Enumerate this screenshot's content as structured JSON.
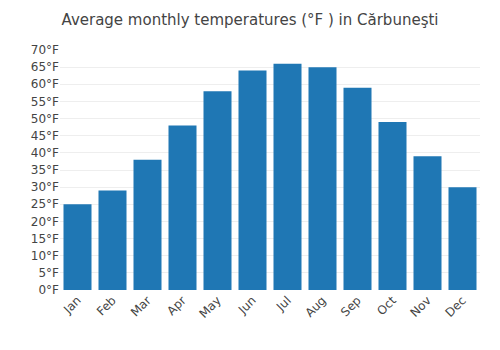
{
  "chart_data": {
    "type": "bar",
    "title": "Average monthly temperatures (°F ) in Cărbuneşti",
    "categories": [
      "Jan",
      "Feb",
      "Mar",
      "Apr",
      "May",
      "Jun",
      "Jul",
      "Aug",
      "Sep",
      "Oct",
      "Nov",
      "Dec"
    ],
    "values": [
      25,
      29,
      38,
      48,
      58,
      64,
      66,
      65,
      59,
      49,
      39,
      30
    ],
    "ylim": [
      0,
      70
    ],
    "yticks": [
      {
        "value": 0,
        "label": "0°F"
      },
      {
        "value": 5,
        "label": "5°F"
      },
      {
        "value": 10,
        "label": "10°F"
      },
      {
        "value": 15,
        "label": "15°F"
      },
      {
        "value": 20,
        "label": "20°F"
      },
      {
        "value": 25,
        "label": "25°F"
      },
      {
        "value": 30,
        "label": "30°F"
      },
      {
        "value": 35,
        "label": "35°F"
      },
      {
        "value": 40,
        "label": "40°F"
      },
      {
        "value": 45,
        "label": "45°F"
      },
      {
        "value": 50,
        "label": "50°F"
      },
      {
        "value": 55,
        "label": "55°F"
      },
      {
        "value": 60,
        "label": "60°F"
      },
      {
        "value": 65,
        "label": "65°F"
      },
      {
        "value": 70,
        "label": "70°F"
      }
    ],
    "grid": true
  }
}
